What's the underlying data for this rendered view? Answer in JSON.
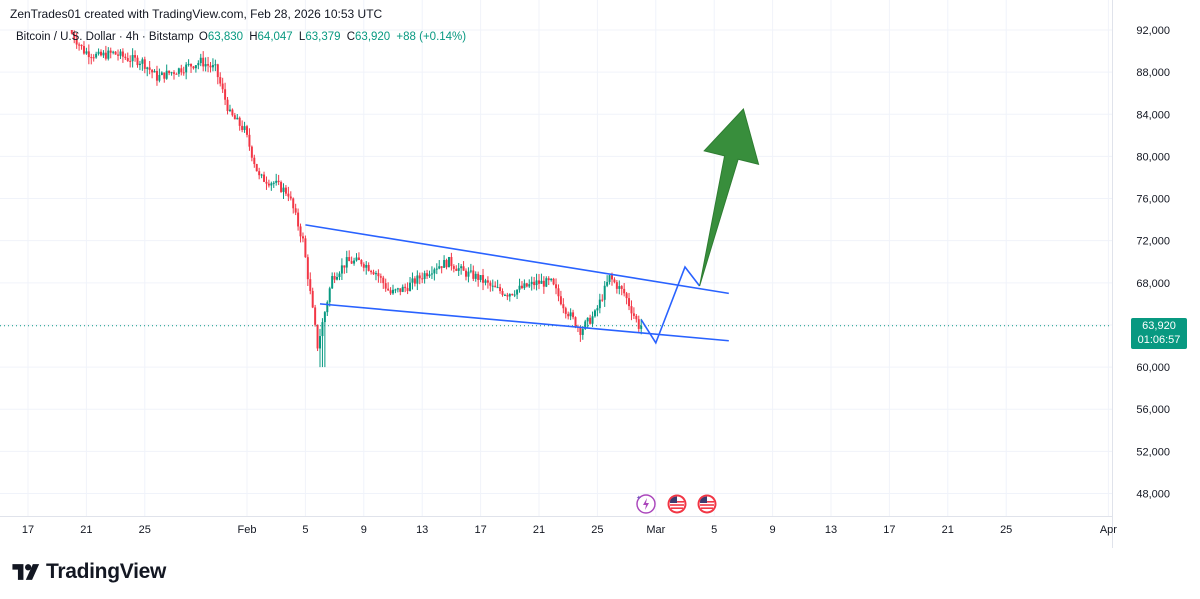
{
  "header": {
    "attribution": "ZenTrades01 created with TradingView.com, Feb 28, 2026 10:53 UTC"
  },
  "legend": {
    "symbol": "Bitcoin / U.S. Dollar · 4h · Bitstamp",
    "o_label": "O",
    "o_value": "63,830",
    "h_label": "H",
    "h_value": "64,047",
    "l_label": "L",
    "l_value": "63,379",
    "c_label": "C",
    "c_value": "63,920",
    "change": "+88 (+0.14%)"
  },
  "price_tag": {
    "price": "63,920",
    "countdown": "01:06:57"
  },
  "footer": {
    "brand": "TradingView"
  },
  "colors": {
    "up": "#089981",
    "down": "#f23645",
    "trend_line": "#2962ff",
    "projection": "#2962ff",
    "arrow": "#388e3c",
    "grid": "#f0f3fa",
    "price_line": "#089981"
  },
  "events": [
    {
      "icon": "sparkle-event-icon"
    },
    {
      "icon": "us-flag-event-icon"
    },
    {
      "icon": "us-flag-event-icon"
    }
  ],
  "chart_data": {
    "type": "candlestick",
    "symbol": "Bitcoin / U.S. Dollar",
    "interval": "4h",
    "exchange": "Bitstamp",
    "y_ticks": [
      92000,
      88000,
      84000,
      80000,
      76000,
      72000,
      68000,
      64000,
      60000,
      56000,
      52000,
      48000
    ],
    "y_tick_labels": [
      "92,000",
      "88,000",
      "84,000",
      "80,000",
      "76,000",
      "72,000",
      "68,000",
      "64,000",
      "60,000",
      "56,000",
      "52,000",
      "48,000"
    ],
    "x_tick_labels": [
      "17",
      "21",
      "25",
      "Feb",
      "5",
      "9",
      "13",
      "17",
      "21",
      "25",
      "Mar",
      "5",
      "9",
      "13",
      "17",
      "21",
      "25",
      "Apr"
    ],
    "x_tick_dates": [
      "2026-01-17",
      "2026-01-21",
      "2026-01-25",
      "2026-02-01",
      "2026-02-05",
      "2026-02-09",
      "2026-02-13",
      "2026-02-17",
      "2026-02-21",
      "2026-02-25",
      "2026-03-01",
      "2026-03-05",
      "2026-03-09",
      "2026-03-13",
      "2026-03-17",
      "2026-03-21",
      "2026-03-25",
      "2026-04-01"
    ],
    "last_price": 63920,
    "price_path": [
      [
        "2026-01-20",
        92000
      ],
      [
        "2026-01-21",
        90000
      ],
      [
        "2026-01-22",
        89500
      ],
      [
        "2026-01-23",
        89800
      ],
      [
        "2026-01-24",
        89300
      ],
      [
        "2026-01-25",
        89000
      ],
      [
        "2026-01-26",
        87500
      ],
      [
        "2026-01-27",
        88000
      ],
      [
        "2026-01-28",
        88500
      ],
      [
        "2026-01-29",
        89000
      ],
      [
        "2026-01-30",
        88300
      ],
      [
        "2026-01-31",
        84000
      ],
      [
        "2026-02-01",
        82500
      ],
      [
        "2026-02-02",
        78000
      ],
      [
        "2026-02-03",
        77500
      ],
      [
        "2026-02-04",
        76500
      ],
      [
        "2026-02-05",
        72000
      ],
      [
        "2026-02-06",
        62000
      ],
      [
        "2026-02-07",
        68500
      ],
      [
        "2026-02-08",
        70000
      ],
      [
        "2026-02-09",
        70000
      ],
      [
        "2026-02-10",
        69000
      ],
      [
        "2026-02-11",
        67000
      ],
      [
        "2026-02-12",
        67500
      ],
      [
        "2026-02-13",
        68500
      ],
      [
        "2026-02-14",
        69500
      ],
      [
        "2026-02-15",
        70000
      ],
      [
        "2026-02-16",
        69000
      ],
      [
        "2026-02-17",
        68500
      ],
      [
        "2026-02-18",
        67500
      ],
      [
        "2026-02-19",
        67000
      ],
      [
        "2026-02-20",
        67500
      ],
      [
        "2026-02-21",
        68000
      ],
      [
        "2026-02-22",
        68000
      ],
      [
        "2026-02-23",
        65500
      ],
      [
        "2026-02-24",
        63500
      ],
      [
        "2026-02-25",
        65000
      ],
      [
        "2026-02-26",
        68500
      ],
      [
        "2026-02-27",
        67000
      ],
      [
        "2026-02-28",
        63920
      ]
    ],
    "range_low_wick": 60000,
    "range_high_wick": 92000,
    "channel": {
      "upper": [
        [
          "2026-02-05",
          73500
        ],
        [
          "2026-03-06",
          67000
        ]
      ],
      "lower": [
        [
          "2026-02-06",
          66000
        ],
        [
          "2026-03-06",
          62500
        ]
      ]
    },
    "projection_path": [
      [
        "2026-02-28",
        64500
      ],
      [
        "2026-03-01",
        62300
      ],
      [
        "2026-03-03",
        69500
      ],
      [
        "2026-03-04",
        67700
      ]
    ],
    "arrow_target": [
      "2026-03-07",
      84500
    ]
  }
}
